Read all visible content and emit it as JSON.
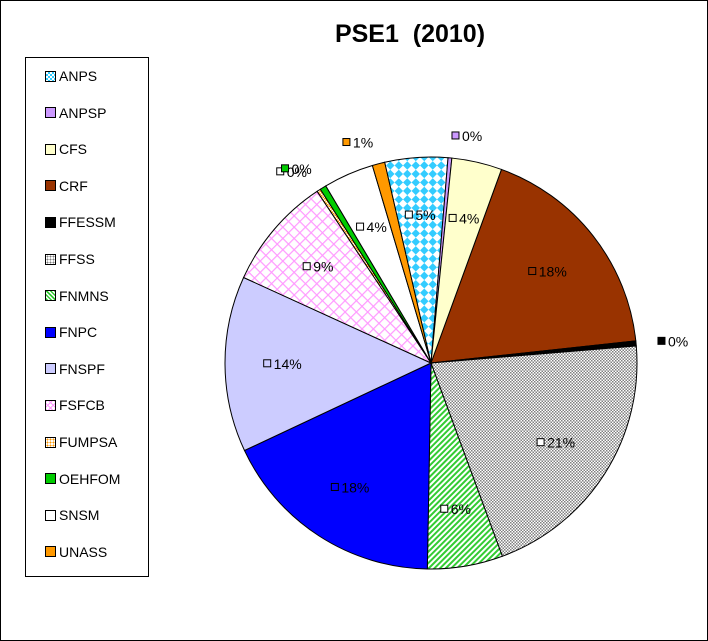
{
  "chart_data": {
    "type": "pie",
    "title": "PSE1  (2010)",
    "legend_position": "left",
    "slices": [
      {
        "name": "CRF",
        "value": 18,
        "label": "18%",
        "color": "#993300",
        "pattern": "solid"
      },
      {
        "name": "FFESSM",
        "value": 0.4,
        "label": "0%",
        "color": "#000000",
        "pattern": "solid"
      },
      {
        "name": "FFSS",
        "value": 21,
        "label": "21%",
        "color": "#808080",
        "pattern": "dots"
      },
      {
        "name": "FNMNS",
        "value": 6,
        "label": "6%",
        "color": "#33cc33",
        "pattern": "diagonal"
      },
      {
        "name": "FNPC",
        "value": 18,
        "label": "18%",
        "color": "#0000ff",
        "pattern": "solid"
      },
      {
        "name": "FNSPF",
        "value": 14,
        "label": "14%",
        "color": "#ccccff",
        "pattern": "solid"
      },
      {
        "name": "FSFCB",
        "value": 9,
        "label": "9%",
        "color": "#ff99ff",
        "pattern": "crosshatch"
      },
      {
        "name": "FUMPSA",
        "value": 0.3,
        "label": "0%",
        "color": "#ff9900",
        "pattern": "dots"
      },
      {
        "name": "OEHFOM",
        "value": 0.5,
        "label": "0%",
        "color": "#00cc00",
        "pattern": "solid"
      },
      {
        "name": "SNSM",
        "value": 4,
        "label": "4%",
        "color": "#ffffff",
        "pattern": "solid"
      },
      {
        "name": "UNASS",
        "value": 1,
        "label": "1%",
        "color": "#ff9900",
        "pattern": "solid"
      },
      {
        "name": "ANPS",
        "value": 5,
        "label": "5%",
        "color": "#33ccff",
        "pattern": "checker"
      },
      {
        "name": "ANPSP",
        "value": 0.3,
        "label": "0%",
        "color": "#cc99ff",
        "pattern": "solid"
      },
      {
        "name": "CFS",
        "value": 4,
        "label": "4%",
        "color": "#ffffcc",
        "pattern": "solid"
      }
    ],
    "legend": [
      {
        "name": "ANPS",
        "color": "#33ccff",
        "pattern": "checker"
      },
      {
        "name": "ANPSP",
        "color": "#cc99ff",
        "pattern": "solid"
      },
      {
        "name": "CFS",
        "color": "#ffffcc",
        "pattern": "solid"
      },
      {
        "name": "CRF",
        "color": "#993300",
        "pattern": "solid"
      },
      {
        "name": "FFESSM",
        "color": "#000000",
        "pattern": "solid"
      },
      {
        "name": "FFSS",
        "color": "#808080",
        "pattern": "dots"
      },
      {
        "name": "FNMNS",
        "color": "#33cc33",
        "pattern": "diagonal"
      },
      {
        "name": "FNPC",
        "color": "#0000ff",
        "pattern": "solid"
      },
      {
        "name": "FNSPF",
        "color": "#ccccff",
        "pattern": "solid"
      },
      {
        "name": "FSFCB",
        "color": "#ff99ff",
        "pattern": "crosshatch"
      },
      {
        "name": "FUMPSA",
        "color": "#ff9900",
        "pattern": "dots"
      },
      {
        "name": "OEHFOM",
        "color": "#00cc00",
        "pattern": "solid"
      },
      {
        "name": "SNSM",
        "color": "#ffffff",
        "pattern": "solid"
      },
      {
        "name": "UNASS",
        "color": "#ff9900",
        "pattern": "solid"
      }
    ]
  }
}
